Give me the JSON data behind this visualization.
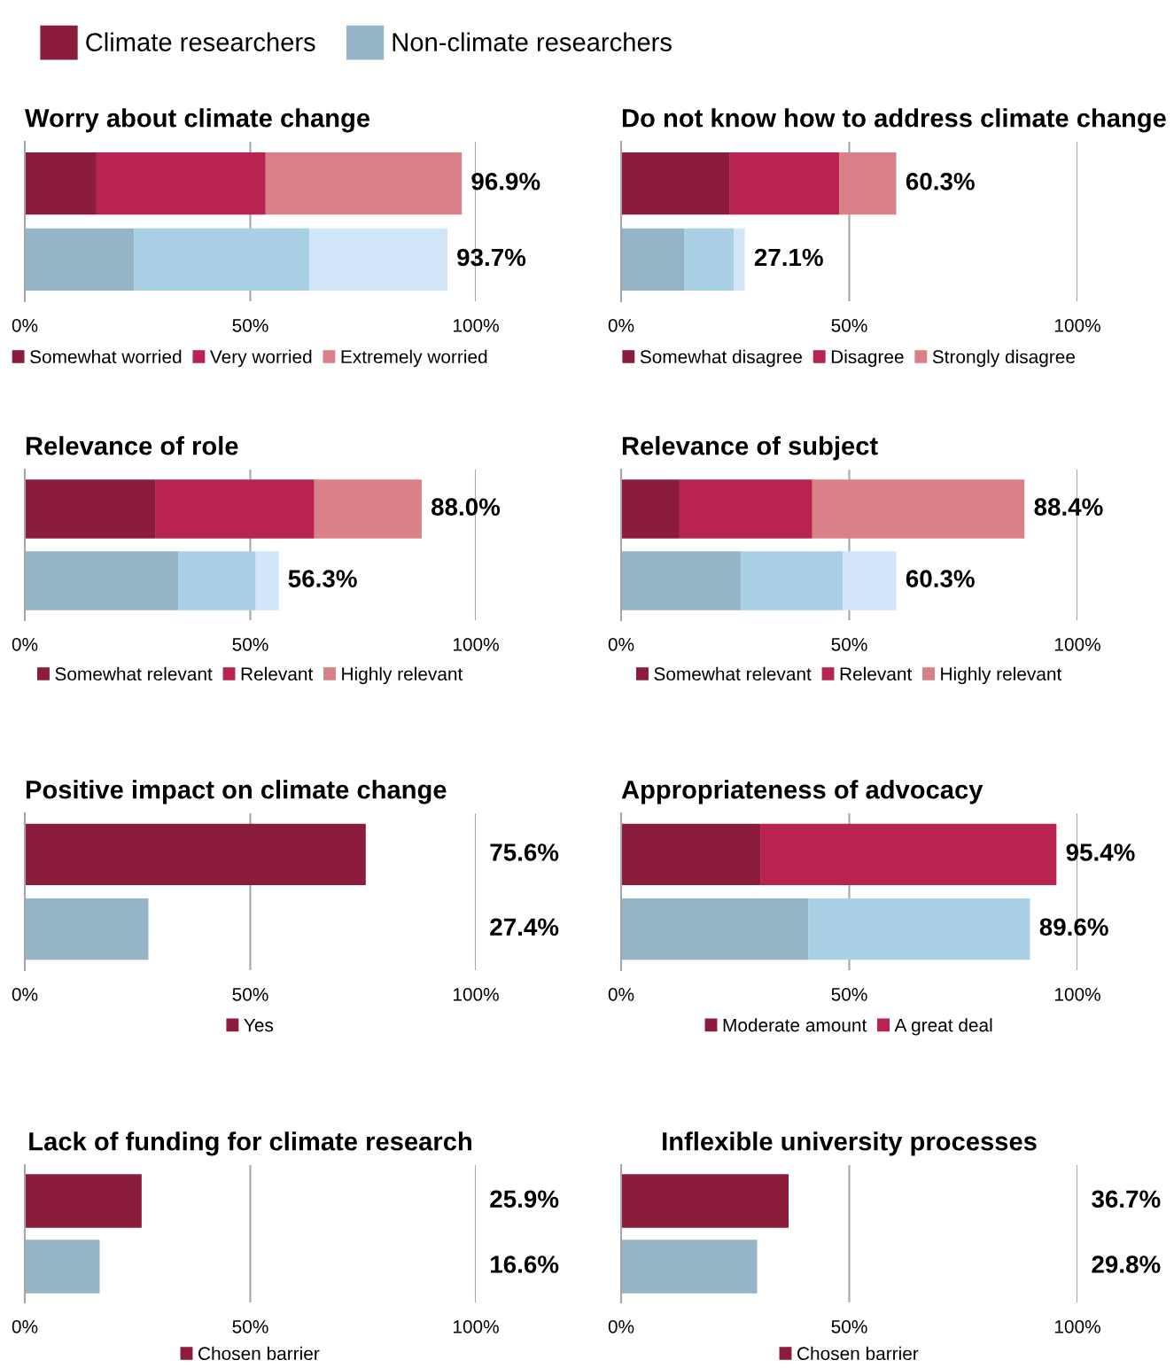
{
  "chart_data": [
    {
      "type": "other",
      "legend": "top left",
      "series": [
        {
          "name": "Climate researchers",
          "color": "#8b1c3b"
        },
        {
          "name": "Non-climate researchers",
          "color": "#95b4c5"
        }
      ]
    },
    {
      "type": "bar",
      "orientation": "horizontal",
      "stacked": true,
      "title": "Worry about climate change",
      "categories": [
        null,
        null
      ],
      "xlim": [
        0,
        100
      ],
      "xticks": [
        {
          "value": 0,
          "label": "0%"
        },
        {
          "value": 50,
          "label": "50%"
        },
        {
          "value": 100,
          "label": "100%"
        }
      ],
      "grid": "x",
      "legend": "bottom",
      "totals": [
        "96.9%",
        "93.7%"
      ],
      "series": [
        {
          "name": "Somewhat worried",
          "colors": [
            "#8b1c3b",
            "#95b4c5"
          ],
          "values": [
            15.9,
            24.2
          ]
        },
        {
          "name": "Very worried",
          "colors": [
            "#b8234f",
            "#a9d0e4"
          ],
          "values": [
            37.5,
            38.9
          ]
        },
        {
          "name": "Extremely worried",
          "colors": [
            "#d98088",
            "#d1e6f8"
          ],
          "values": [
            43.5,
            30.6
          ]
        }
      ]
    },
    {
      "type": "bar",
      "orientation": "horizontal",
      "stacked": true,
      "title": "Do not know how to address climate change",
      "categories": [
        null,
        null
      ],
      "xlim": [
        0,
        100
      ],
      "xticks": [
        {
          "value": 0,
          "label": "0%"
        },
        {
          "value": 50,
          "label": "50%"
        },
        {
          "value": 100,
          "label": "100%"
        }
      ],
      "grid": "x",
      "legend": "bottom",
      "totals": [
        "60.3%",
        "27.1%"
      ],
      "series": [
        {
          "name": "Somewhat disagree",
          "colors": [
            "#8b1c3b",
            "#95b4c5"
          ],
          "values": [
            23.7,
            13.8
          ]
        },
        {
          "name": "Disagree",
          "colors": [
            "#b8234f",
            "#a9d0e4"
          ],
          "values": [
            24.1,
            10.9
          ]
        },
        {
          "name": "Strongly disagree",
          "colors": [
            "#d98088",
            "#d1e6f8"
          ],
          "values": [
            12.5,
            2.4
          ]
        }
      ]
    },
    {
      "type": "bar",
      "orientation": "horizontal",
      "stacked": true,
      "title": "Relevance of role",
      "categories": [
        null,
        null
      ],
      "xlim": [
        0,
        100
      ],
      "xticks": [
        {
          "value": 0,
          "label": "0%"
        },
        {
          "value": 50,
          "label": "50%"
        },
        {
          "value": 100,
          "label": "100%"
        }
      ],
      "grid": "x",
      "legend": "bottom",
      "totals": [
        "88.0%",
        "56.3%"
      ],
      "series": [
        {
          "name": "Somewhat relevant",
          "colors": [
            "#8b1c3b",
            "#95b4c5"
          ],
          "values": [
            28.9,
            34.0
          ]
        },
        {
          "name": "Relevant",
          "colors": [
            "#b8234f",
            "#a9d0e4"
          ],
          "values": [
            35.3,
            17.2
          ]
        },
        {
          "name": "Highly relevant",
          "colors": [
            "#d98088",
            "#d1e6f8"
          ],
          "values": [
            23.8,
            5.1
          ]
        }
      ]
    },
    {
      "type": "bar",
      "orientation": "horizontal",
      "stacked": true,
      "title": "Relevance of subject",
      "categories": [
        null,
        null
      ],
      "xlim": [
        0,
        100
      ],
      "xticks": [
        {
          "value": 0,
          "label": "0%"
        },
        {
          "value": 50,
          "label": "50%"
        },
        {
          "value": 100,
          "label": "100%"
        }
      ],
      "grid": "x",
      "legend": "bottom",
      "totals": [
        "88.4%",
        "60.3%"
      ],
      "series": [
        {
          "name": "Somewhat relevant",
          "colors": [
            "#8b1c3b",
            "#95b4c5"
          ],
          "values": [
            12.8,
            26.2
          ]
        },
        {
          "name": "Relevant",
          "colors": [
            "#b8234f",
            "#a9d0e4"
          ],
          "values": [
            29.1,
            22.4
          ]
        },
        {
          "name": "Highly relevant",
          "colors": [
            "#d98088",
            "#d1e6f8"
          ],
          "values": [
            46.5,
            11.7
          ]
        }
      ]
    },
    {
      "type": "bar",
      "orientation": "horizontal",
      "title": "Positive impact on climate change",
      "categories": [
        null,
        null
      ],
      "xlim": [
        0,
        100
      ],
      "xticks": [
        {
          "value": 0,
          "label": "0%"
        },
        {
          "value": 50,
          "label": "50%"
        },
        {
          "value": 100,
          "label": "100%"
        }
      ],
      "grid": "x",
      "legend": "bottom",
      "series": [
        {
          "name": "Yes",
          "colors": [
            "#8b1c3b",
            "#95b4c5"
          ],
          "values": [
            75.6,
            27.4
          ],
          "value_labels": [
            "75.6%",
            "27.4%"
          ]
        }
      ]
    },
    {
      "type": "bar",
      "orientation": "horizontal",
      "stacked": true,
      "title": "Appropriateness of advocacy",
      "categories": [
        null,
        null
      ],
      "xlim": [
        0,
        100
      ],
      "xticks": [
        {
          "value": 0,
          "label": "0%"
        },
        {
          "value": 50,
          "label": "50%"
        },
        {
          "value": 100,
          "label": "100%"
        }
      ],
      "grid": "x",
      "legend": "bottom",
      "totals": [
        "95.4%",
        "89.6%"
      ],
      "series": [
        {
          "name": "Moderate amount",
          "colors": [
            "#8b1c3b",
            "#95b4c5"
          ],
          "values": [
            30.5,
            41.0
          ]
        },
        {
          "name": "A great deal",
          "colors": [
            "#b8234f",
            "#a9d0e4"
          ],
          "values": [
            64.9,
            48.6
          ]
        }
      ]
    },
    {
      "type": "bar",
      "orientation": "horizontal",
      "title": "Lack of funding for climate research",
      "categories": [
        null,
        null
      ],
      "xlim": [
        0,
        100
      ],
      "xticks": [
        {
          "value": 0,
          "label": "0%"
        },
        {
          "value": 50,
          "label": "50%"
        },
        {
          "value": 100,
          "label": "100%"
        }
      ],
      "grid": "x",
      "legend": "bottom",
      "series": [
        {
          "name": "Chosen barrier",
          "colors": [
            "#8b1c3b",
            "#95b4c5"
          ],
          "values": [
            25.9,
            16.6
          ],
          "value_labels": [
            "25.9%",
            "16.6%"
          ]
        }
      ]
    },
    {
      "type": "bar",
      "orientation": "horizontal",
      "title": "Inflexible university processes",
      "categories": [
        null,
        null
      ],
      "xlim": [
        0,
        100
      ],
      "xticks": [
        {
          "value": 0,
          "label": "0%"
        },
        {
          "value": 50,
          "label": "50%"
        },
        {
          "value": 100,
          "label": "100%"
        }
      ],
      "grid": "x",
      "legend": "bottom",
      "series": [
        {
          "name": "Chosen barrier",
          "colors": [
            "#8b1c3b",
            "#95b4c5"
          ],
          "values": [
            36.7,
            29.8
          ],
          "value_labels": [
            "36.7%",
            "29.8%"
          ]
        }
      ]
    }
  ]
}
